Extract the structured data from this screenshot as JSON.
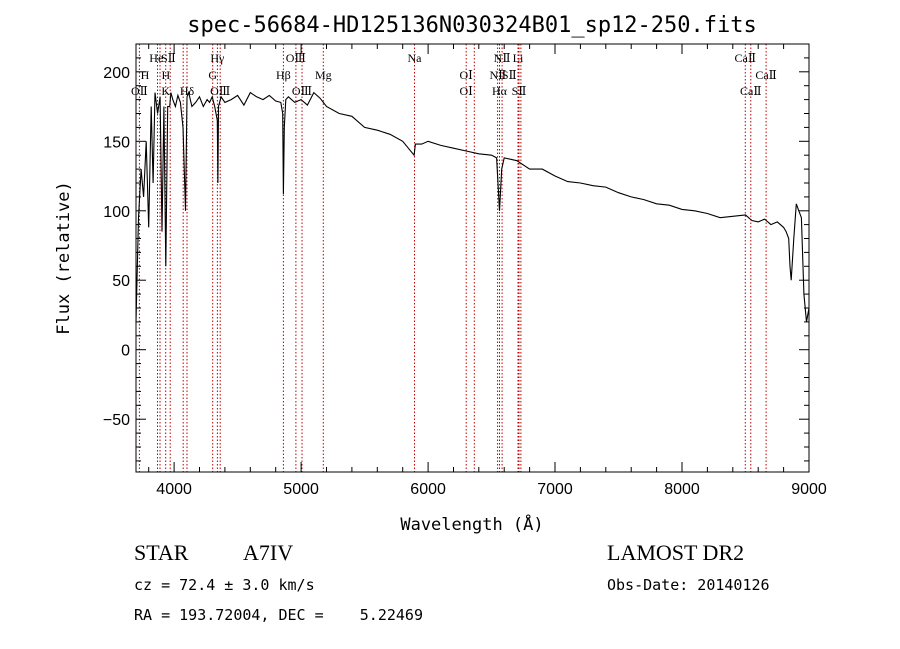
{
  "chart_data": {
    "type": "line",
    "title": "spec-56684-HD125136N030324B01_sp12-250.fits",
    "xlabel": "Wavelength (Å)",
    "ylabel": "Flux (relative)",
    "xlim": [
      3700,
      9000
    ],
    "ylim": [
      -88,
      220
    ],
    "xticks": [
      4000,
      5000,
      6000,
      7000,
      8000,
      9000
    ],
    "yticks": [
      -50,
      0,
      50,
      100,
      150,
      200
    ],
    "grid": false,
    "series": [
      {
        "x": [
          3700,
          3720,
          3740,
          3760,
          3780,
          3800,
          3820,
          3835,
          3850,
          3870,
          3890,
          3905,
          3920,
          3935,
          3950,
          3965,
          3975,
          3990,
          4010,
          4030,
          4050,
          4070,
          4090,
          4102,
          4115,
          4140,
          4170,
          4200,
          4230,
          4260,
          4280,
          4300,
          4320,
          4340,
          4345,
          4350,
          4370,
          4400,
          4450,
          4500,
          4550,
          4600,
          4650,
          4700,
          4750,
          4800,
          4840,
          4855,
          4861,
          4868,
          4880,
          4900,
          4950,
          5000,
          5050,
          5100,
          5150,
          5200,
          5300,
          5400,
          5500,
          5600,
          5700,
          5800,
          5890,
          5900,
          5950,
          6000,
          6100,
          6200,
          6300,
          6400,
          6500,
          6540,
          6563,
          6580,
          6600,
          6700,
          6800,
          6900,
          7000,
          7100,
          7200,
          7300,
          7400,
          7500,
          7600,
          7700,
          7800,
          7900,
          8000,
          8100,
          8200,
          8300,
          8400,
          8500,
          8550,
          8600,
          8650,
          8700,
          8750,
          8800,
          8820,
          8840,
          8850,
          8860,
          8880,
          8900,
          8920,
          8940,
          8960,
          8980,
          9000
        ],
        "y": [
          20,
          95,
          130,
          110,
          150,
          88,
          175,
          120,
          185,
          170,
          182,
          85,
          175,
          60,
          175,
          175,
          185,
          180,
          175,
          183,
          178,
          160,
          100,
          182,
          185,
          175,
          178,
          182,
          175,
          180,
          178,
          182,
          175,
          165,
          120,
          175,
          182,
          178,
          180,
          183,
          176,
          185,
          182,
          180,
          183,
          179,
          178,
          170,
          112,
          160,
          180,
          182,
          178,
          180,
          176,
          185,
          181,
          175,
          170,
          168,
          160,
          158,
          155,
          150,
          140,
          148,
          148,
          150,
          147,
          145,
          143,
          141,
          140,
          138,
          100,
          130,
          138,
          136,
          130,
          130,
          125,
          121,
          120,
          118,
          117,
          113,
          110,
          108,
          105,
          104,
          101,
          100,
          98,
          95,
          96,
          97,
          93,
          92,
          94,
          90,
          92,
          88,
          85,
          80,
          60,
          50,
          80,
          105,
          100,
          95,
          40,
          20,
          30
        ]
      }
    ],
    "annotations": [
      {
        "text": "He",
        "x": 3860,
        "row": 1
      },
      {
        "text": "SⅡ",
        "x": 3955,
        "row": 1
      },
      {
        "text": "Hγ",
        "x": 4340,
        "row": 1
      },
      {
        "text": "OⅢ",
        "x": 4959,
        "row": 1
      },
      {
        "text": "Na",
        "x": 5893,
        "row": 1
      },
      {
        "text": "NⅡ",
        "x": 6583,
        "row": 1
      },
      {
        "text": "Li",
        "x": 6708,
        "row": 1
      },
      {
        "text": "CaⅡ",
        "x": 8498,
        "row": 1
      },
      {
        "text": "H",
        "x": 3770,
        "row": 2
      },
      {
        "text": "H",
        "x": 3935,
        "row": 2
      },
      {
        "text": "G",
        "x": 4304,
        "row": 2
      },
      {
        "text": "Mg",
        "x": 5175,
        "row": 2
      },
      {
        "text": "OⅠ",
        "x": 6300,
        "row": 2
      },
      {
        "text": "NⅡ",
        "x": 6550,
        "row": 2
      },
      {
        "text": "SⅡ",
        "x": 6640,
        "row": 2
      },
      {
        "text": "CaⅡ",
        "x": 8662,
        "row": 2
      },
      {
        "text": "Hβ",
        "x": 4861,
        "row": 3
      },
      {
        "text": "OⅡ",
        "x": 3727,
        "row": 4
      },
      {
        "text": "K",
        "x": 3934,
        "row": 4
      },
      {
        "text": "Hδ",
        "x": 4102,
        "row": 4
      },
      {
        "text": "OⅢ",
        "x": 4363,
        "row": 4
      },
      {
        "text": "OⅢ",
        "x": 5007,
        "row": 4
      },
      {
        "text": "OⅠ",
        "x": 6300,
        "row": 4
      },
      {
        "text": "Hα",
        "x": 6563,
        "row": 4
      },
      {
        "text": "SⅡ",
        "x": 6716,
        "row": 4
      },
      {
        "text": "CaⅡ",
        "x": 8542,
        "row": 4
      }
    ],
    "line_markers": [
      3727,
      3869,
      3889,
      3934,
      3969,
      4072,
      4102,
      4304,
      4341,
      4363,
      4861,
      4959,
      5007,
      5175,
      5893,
      6300,
      6364,
      6548,
      6563,
      6583,
      6708,
      6716,
      6731,
      8498,
      8542,
      8662
    ]
  },
  "info": {
    "class": "STAR",
    "subclass": "A7IV",
    "cz": "cz = 72.4 ± 3.0 km/s",
    "radec": "RA = 193.72004, DEC =    5.22469",
    "survey": "LAMOST DR2",
    "obsdate": "Obs-Date: 20140126"
  }
}
